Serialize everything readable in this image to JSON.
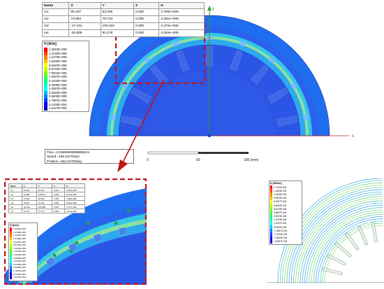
{
  "marker_table": {
    "headers": [
      "Name",
      "X",
      "Y",
      "Z",
      "H"
    ],
    "rows": [
      {
        "name": "m1",
        "x": "65.187",
        "y": "53.069",
        "z": "0.000",
        "h": "4.786e+005"
      },
      {
        "name": "m2",
        "x": "73.964",
        "y": "79.723",
        "z": "0.000",
        "h": "4.351e+005"
      },
      {
        "name": "m3",
        "x": "-27.231",
        "y": "105.022",
        "z": "0.000",
        "h": "3.372e+005"
      },
      {
        "name": "m4",
        "x": "-53.805",
        "y": "93.276",
        "z": "0.000",
        "h": "3.284e+005"
      }
    ]
  },
  "inset_table": {
    "rows": [
      {
        "name": "m1",
        "x": "64.026",
        "y": "94.078",
        "z": "0.000",
        "h": "3.326e+005"
      },
      {
        "name": "m2",
        "x": "24.389",
        "y": "108.071",
        "z": "0.000",
        "h": "3.314e+005"
      },
      {
        "name": "m3",
        "x": "47.840",
        "y": "96.902",
        "z": "0.000",
        "h": "7.989e+005"
      },
      {
        "name": "m4",
        "x": "78.921",
        "y": "72.160",
        "z": "0.000",
        "h": "8.024e+005"
      },
      {
        "name": "m5",
        "x": "-22.030",
        "y": "102.280",
        "z": "0.000",
        "h": "7.577e+005"
      },
      {
        "name": "m6",
        "x": "76.737",
        "y": "74.773",
        "z": "0.000",
        "h": "7.674e+005"
      }
    ]
  },
  "legend_main": {
    "title": "H [A/m]",
    "values": [
      "1.3610E+006",
      "1.2140E+006",
      "1.1270E+006",
      "1.0400E+006",
      "9.5467E+005",
      "8.6734E+005",
      "7.9001E+005",
      "7.0267E+005",
      "6.1534E+005",
      "5.2800E+005",
      "4.4067E+005",
      "3.5334E+005",
      "2.6600E+005",
      "1.7867E+005",
      "9.1334E+004",
      "1.5127E+003"
    ],
    "colors": [
      "#ff0000",
      "#ff4000",
      "#ff8000",
      "#ffbf00",
      "#ffff00",
      "#bfff00",
      "#80ff00",
      "#40ff40",
      "#00ff80",
      "#00ffbf",
      "#00ffff",
      "#00bfff",
      "#0080ff",
      "#0040ff",
      "#0000ff",
      "#0000c0"
    ]
  },
  "legend_inset": {
    "title": "H [A/m]",
    "values": [
      "1.3610E+006",
      "1.2140E+006",
      "1.1270E+006",
      "1.0400E+006",
      "9.5467E+005",
      "8.6734E+005",
      "7.9001E+005",
      "7.0267E+005",
      "6.1534E+005",
      "5.2800E+005",
      "4.4067E+005",
      "3.5334E+005",
      "2.6600E+005",
      "1.7867E+005",
      "9.1334E+004",
      "1.5127E+003"
    ]
  },
  "legend_right": {
    "title": "H [Wb/m]",
    "values": [
      "1.2700E-003",
      "1.1553E-003",
      "1.0400E-003",
      "9.2533E-004",
      "8.1067E-004",
      "6.9600E-004",
      "5.8133E-004",
      "4.6667E-004",
      "3.5200E-004",
      "2.3733E-004",
      "1.2267E-004",
      "8.0000E-006",
      "-1.0667E-004",
      "-2.2133E-004",
      "-3.3600E-004",
      "-4.5067E-004"
    ]
  },
  "sim_info": {
    "time": "Time   =0.0299999999999921s",
    "speed": "Speed  =159.24170rpm",
    "position": "Position =553.24705deg"
  },
  "scale_bar": {
    "labels": [
      "0",
      "50",
      "100 (mm)"
    ]
  },
  "axes": {
    "y_label": "y",
    "x_label": "x"
  },
  "colors": {
    "accent_dash": "#c0141b",
    "field_blue": "#1f6ef0",
    "rotor_blue": "#2b55e6"
  }
}
